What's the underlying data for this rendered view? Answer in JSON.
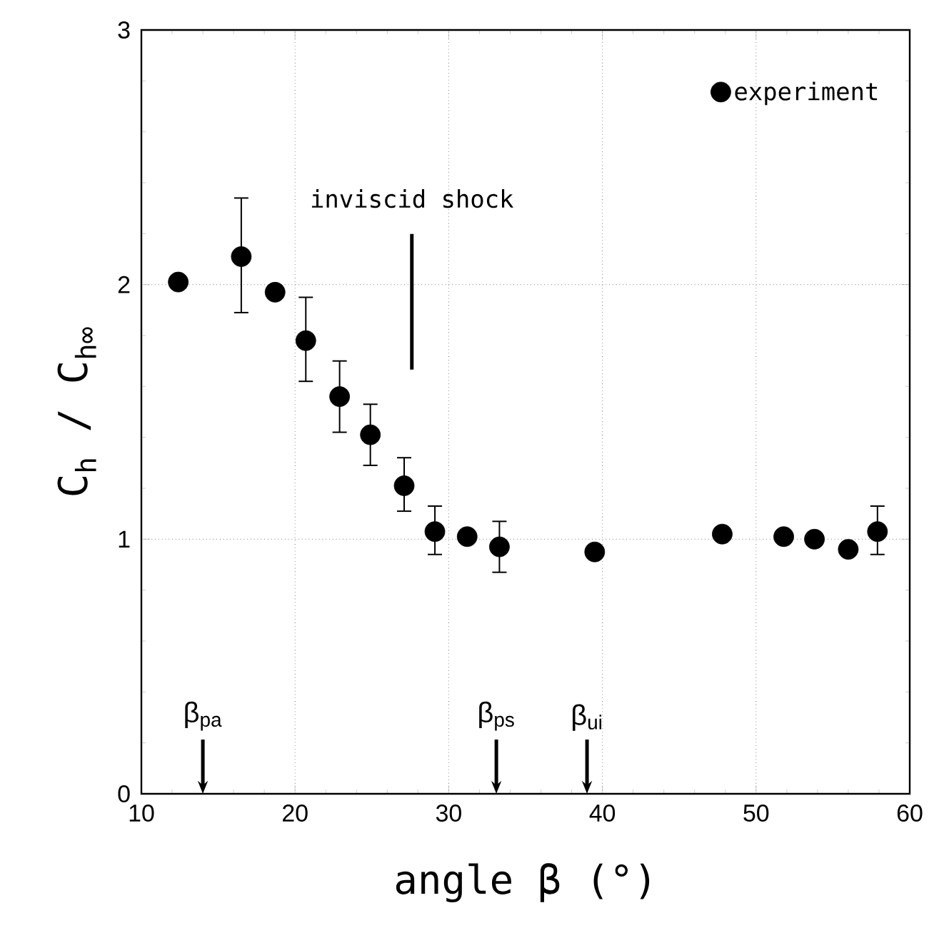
{
  "chart_data": {
    "type": "scatter",
    "xlabel": "angle β (°)",
    "ylabel": "C$_{h}$ / C$_{h∞}$",
    "xlim": [
      10,
      60
    ],
    "ylim": [
      0,
      3
    ],
    "xticks": [
      10,
      20,
      30,
      40,
      50,
      60
    ],
    "yticks": [
      0,
      1,
      2,
      3
    ],
    "grid": true,
    "legend": "top right",
    "marker": "circle",
    "series": [
      {
        "name": "experiment",
        "color": "#000000",
        "x": [
          12.4,
          16.5,
          18.7,
          20.7,
          22.9,
          24.9,
          27.1,
          29.1,
          31.2,
          33.3,
          39.5,
          47.8,
          51.8,
          53.8,
          56.0,
          57.9
        ],
        "values": [
          2.01,
          2.11,
          1.97,
          1.78,
          1.56,
          1.41,
          1.21,
          1.03,
          1.01,
          0.97,
          0.95,
          1.02,
          1.01,
          1.0,
          0.96,
          1.03
        ],
        "errors": [
          null,
          [
            1.89,
            2.34
          ],
          null,
          [
            1.62,
            1.95
          ],
          [
            1.42,
            1.7
          ],
          [
            1.29,
            1.53
          ],
          [
            1.11,
            1.32
          ],
          [
            0.94,
            1.13
          ],
          null,
          [
            0.87,
            1.07
          ],
          null,
          null,
          null,
          null,
          null,
          [
            0.94,
            1.13
          ]
        ]
      }
    ],
    "ref_lines": [
      {
        "axis": "x",
        "value": 27.6,
        "label": "inviscid shock",
        "line_style": "solid"
      },
      {
        "axis": "x",
        "value": 14.0,
        "label": "β$_{pa}$"
      },
      {
        "axis": "x",
        "value": 33.1,
        "label": "β$_{ps}$"
      },
      {
        "axis": "x",
        "value": 39.0,
        "label": "β$_{ui}$"
      }
    ]
  }
}
